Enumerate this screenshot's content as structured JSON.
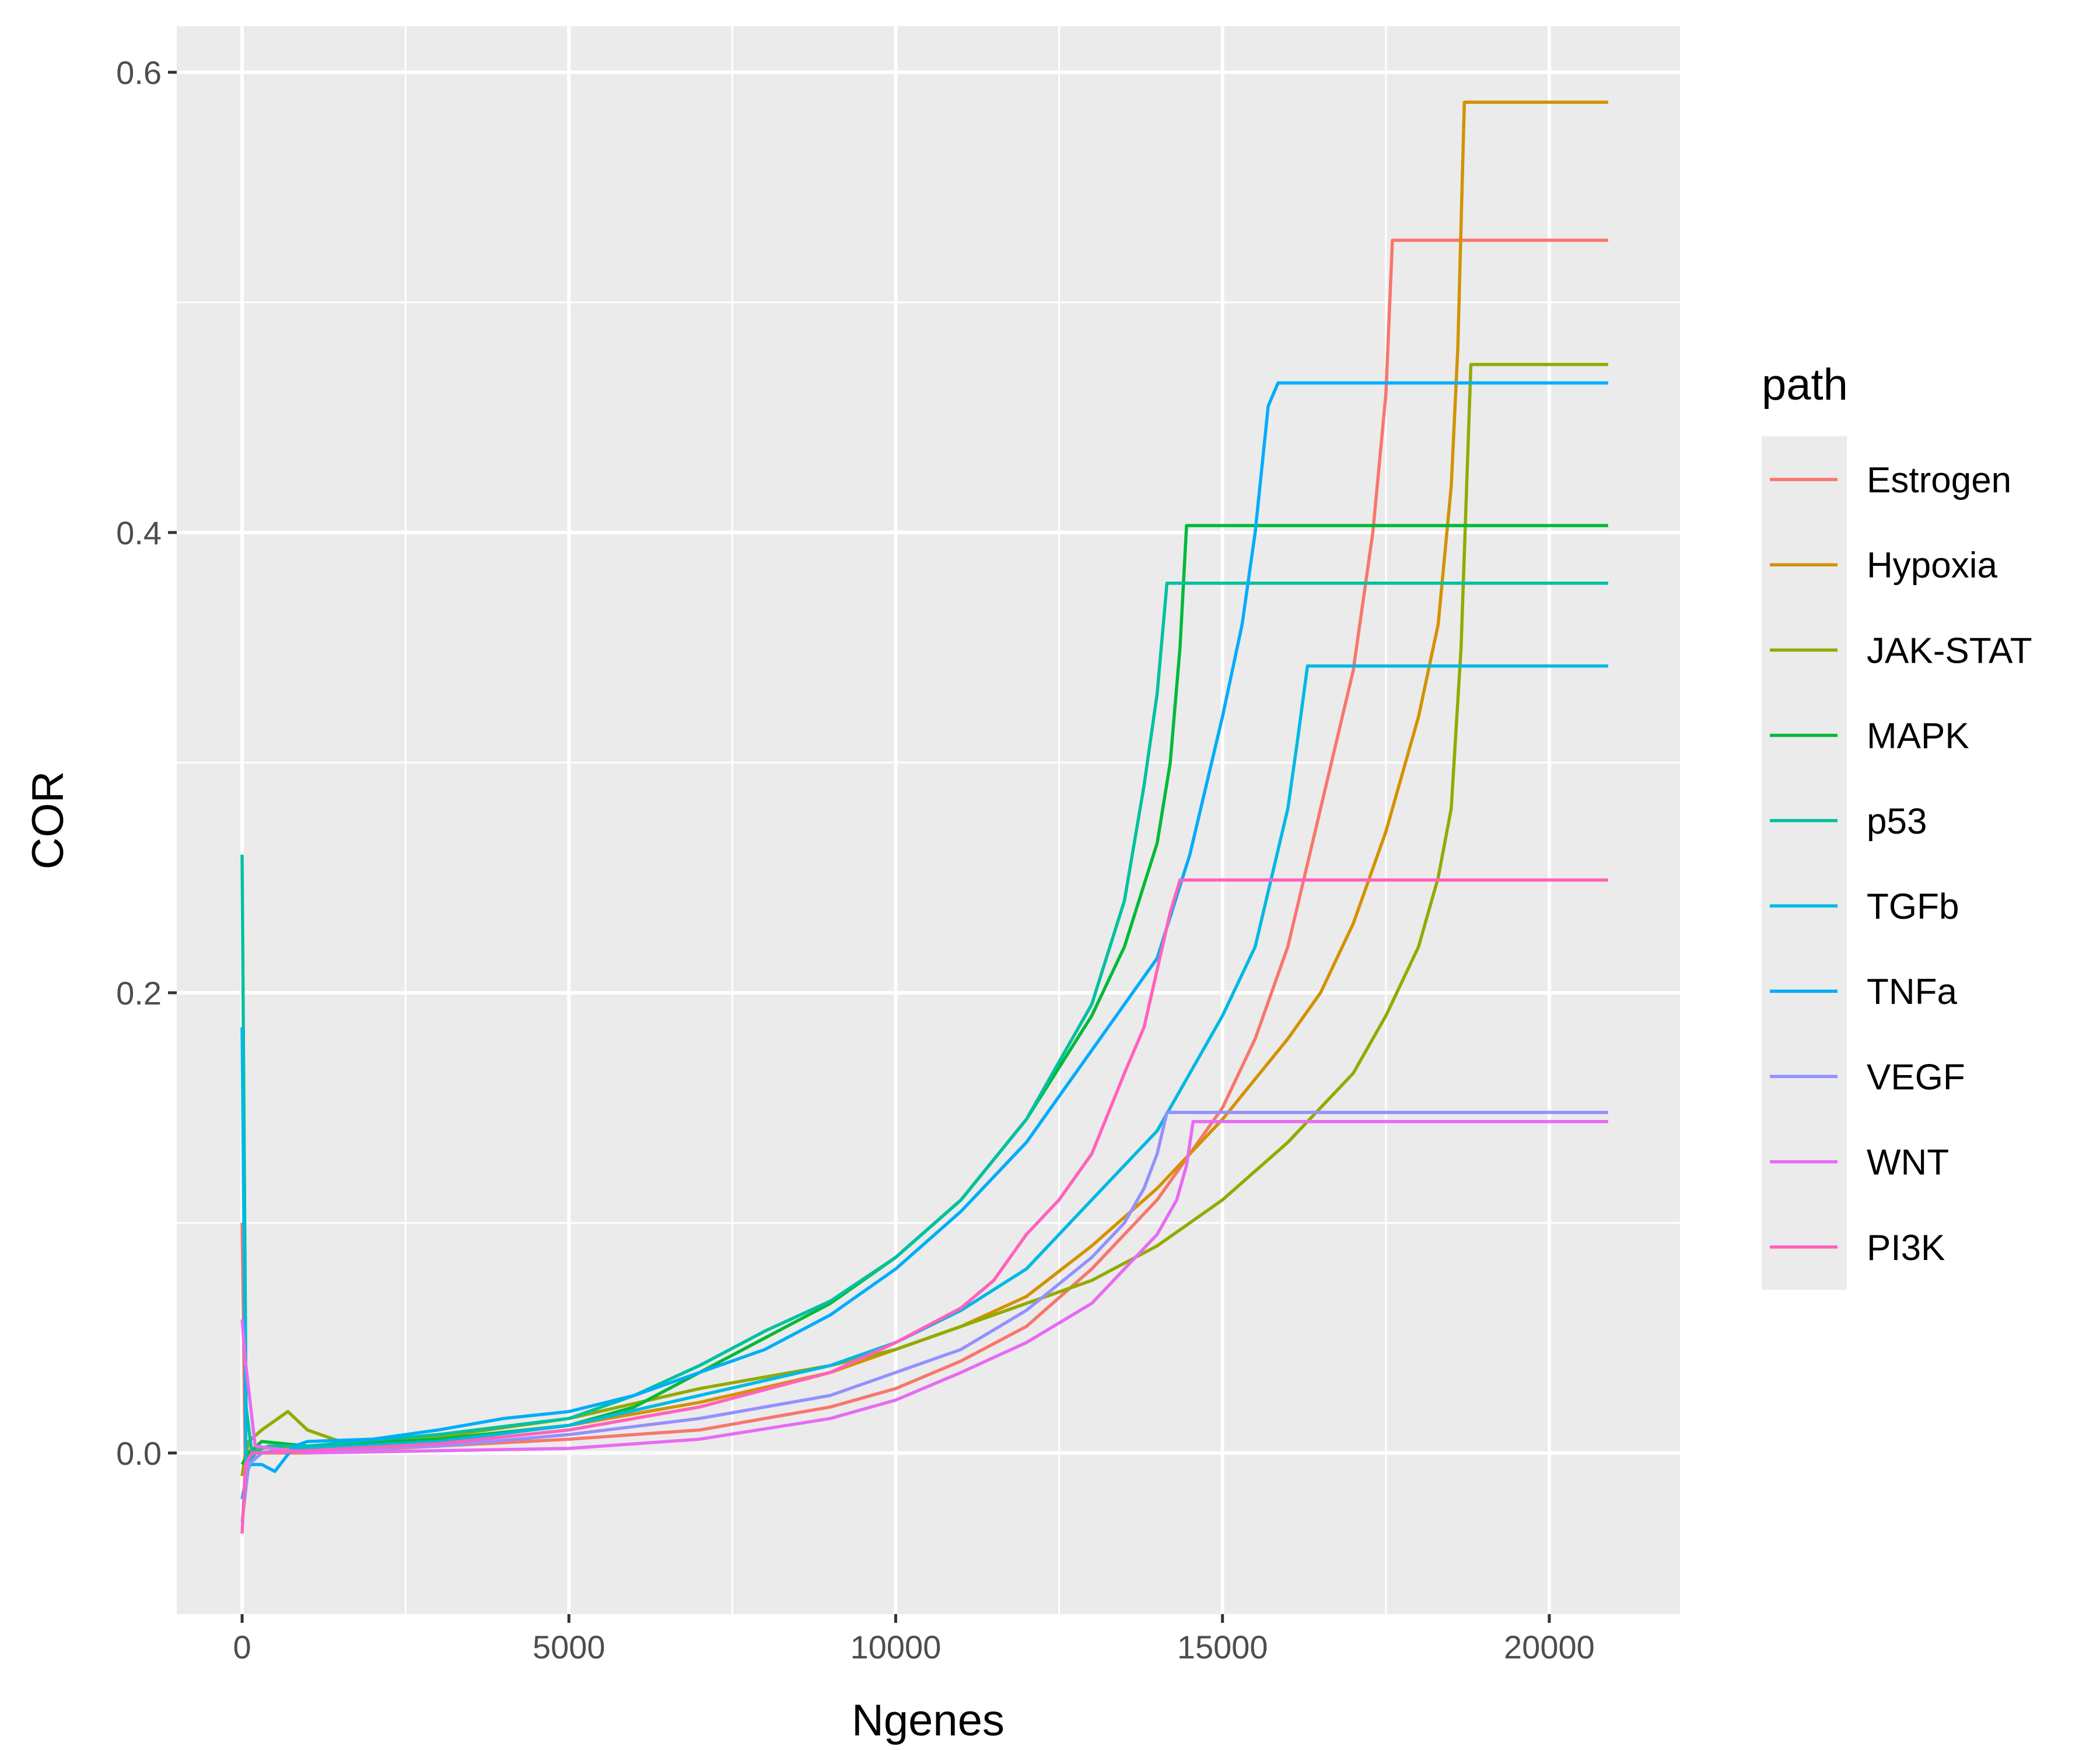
{
  "chart_data": {
    "type": "line",
    "xlabel": "Ngenes",
    "ylabel": "COR",
    "xlim": [
      -1000,
      22000
    ],
    "ylim": [
      -0.07,
      0.62
    ],
    "x_ticks": [
      0,
      5000,
      10000,
      15000,
      20000
    ],
    "x_tick_labels": [
      "0",
      "5000",
      "10000",
      "15000",
      "20000"
    ],
    "y_ticks": [
      0.0,
      0.2,
      0.4,
      0.6
    ],
    "y_tick_labels": [
      "0.0",
      "0.2",
      "0.4",
      "0.6"
    ],
    "grid": true,
    "legend": {
      "title": "path",
      "placement": "right"
    },
    "series": [
      {
        "name": "Estrogen",
        "color": "#F8766D",
        "x": [
          0,
          50,
          200,
          1000,
          3000,
          5000,
          7000,
          9000,
          10000,
          11000,
          12000,
          13000,
          14000,
          15000,
          15500,
          16000,
          16500,
          17000,
          17300,
          17500,
          17600,
          20900
        ],
        "y": [
          0.1,
          -0.01,
          0.0,
          0.0,
          0.003,
          0.006,
          0.01,
          0.02,
          0.028,
          0.04,
          0.055,
          0.08,
          0.11,
          0.15,
          0.18,
          0.22,
          0.28,
          0.34,
          0.4,
          0.46,
          0.527,
          0.527
        ]
      },
      {
        "name": "Hypoxia",
        "color": "#D39200",
        "x": [
          0,
          50,
          200,
          1000,
          3000,
          5000,
          7000,
          9000,
          10000,
          11000,
          12000,
          13000,
          14000,
          15000,
          16000,
          16500,
          17000,
          17500,
          18000,
          18300,
          18500,
          18600,
          18700,
          20900
        ],
        "y": [
          -0.01,
          0.0,
          0.002,
          0.003,
          0.005,
          0.012,
          0.022,
          0.035,
          0.045,
          0.055,
          0.068,
          0.09,
          0.115,
          0.145,
          0.18,
          0.2,
          0.23,
          0.27,
          0.32,
          0.36,
          0.42,
          0.48,
          0.587,
          0.587
        ]
      },
      {
        "name": "JAK-STAT",
        "color": "#93AA00",
        "x": [
          0,
          100,
          300,
          700,
          1000,
          1500,
          3000,
          5000,
          7000,
          9000,
          10000,
          11000,
          12000,
          13000,
          14000,
          14500,
          15000,
          16000,
          17000,
          17500,
          18000,
          18300,
          18500,
          18650,
          18800,
          20900
        ],
        "y": [
          -0.01,
          0.005,
          0.01,
          0.018,
          0.01,
          0.005,
          0.007,
          0.015,
          0.028,
          0.038,
          0.045,
          0.055,
          0.065,
          0.075,
          0.09,
          0.1,
          0.11,
          0.135,
          0.165,
          0.19,
          0.22,
          0.25,
          0.28,
          0.35,
          0.473,
          0.473
        ]
      },
      {
        "name": "MAPK",
        "color": "#00BA38",
        "x": [
          0,
          100,
          300,
          1000,
          3000,
          5000,
          6000,
          7000,
          8000,
          9000,
          10000,
          11000,
          12000,
          13000,
          13500,
          14000,
          14200,
          14350,
          14450,
          20900
        ],
        "y": [
          -0.005,
          0.0,
          0.005,
          0.003,
          0.006,
          0.012,
          0.02,
          0.035,
          0.05,
          0.065,
          0.085,
          0.11,
          0.145,
          0.19,
          0.22,
          0.265,
          0.3,
          0.35,
          0.403,
          0.403
        ]
      },
      {
        "name": "p53",
        "color": "#00C19F",
        "x": [
          0,
          60,
          150,
          400,
          1000,
          3000,
          5000,
          6000,
          7000,
          8000,
          9000,
          10000,
          11000,
          12000,
          13000,
          13500,
          13800,
          14000,
          14150,
          20900
        ],
        "y": [
          0.26,
          0.02,
          0.0,
          0.003,
          0.003,
          0.008,
          0.015,
          0.025,
          0.038,
          0.053,
          0.066,
          0.085,
          0.11,
          0.145,
          0.195,
          0.24,
          0.29,
          0.33,
          0.378,
          0.378
        ]
      },
      {
        "name": "TGFb",
        "color": "#00B9E3",
        "x": [
          0,
          60,
          200,
          1000,
          3000,
          5000,
          7000,
          9000,
          10000,
          11000,
          12000,
          13000,
          14000,
          15000,
          15500,
          16000,
          16150,
          16300,
          20900
        ],
        "y": [
          0.185,
          -0.005,
          0.0,
          0.002,
          0.005,
          0.012,
          0.025,
          0.038,
          0.048,
          0.062,
          0.08,
          0.11,
          0.14,
          0.19,
          0.22,
          0.28,
          0.31,
          0.342,
          0.342
        ]
      },
      {
        "name": "TNFa",
        "color": "#00ADFA",
        "x": [
          0,
          100,
          300,
          500,
          800,
          1000,
          2000,
          3000,
          4000,
          5000,
          6000,
          7000,
          8000,
          9000,
          10000,
          11000,
          12000,
          13000,
          14000,
          14500,
          15000,
          15300,
          15500,
          15700,
          15850,
          20900
        ],
        "y": [
          -0.02,
          -0.005,
          -0.005,
          -0.008,
          0.003,
          0.005,
          0.006,
          0.01,
          0.015,
          0.018,
          0.025,
          0.035,
          0.045,
          0.06,
          0.08,
          0.105,
          0.135,
          0.175,
          0.215,
          0.26,
          0.32,
          0.36,
          0.4,
          0.455,
          0.465,
          0.465
        ]
      },
      {
        "name": "VEGF",
        "color": "#9590FF",
        "x": [
          0,
          100,
          300,
          1000,
          3000,
          5000,
          7000,
          9000,
          10000,
          11000,
          12000,
          13000,
          13500,
          13800,
          14000,
          14150,
          20900
        ],
        "y": [
          -0.03,
          -0.005,
          0.0,
          0.001,
          0.003,
          0.008,
          0.015,
          0.025,
          0.035,
          0.045,
          0.062,
          0.085,
          0.1,
          0.115,
          0.13,
          0.148,
          0.148
        ]
      },
      {
        "name": "WNT",
        "color": "#E76BF3",
        "x": [
          0,
          50,
          200,
          1000,
          3000,
          5000,
          7000,
          9000,
          10000,
          11000,
          12000,
          13000,
          13500,
          14000,
          14300,
          14450,
          14550,
          20900
        ],
        "y": [
          0.058,
          0.04,
          0.003,
          0.0,
          0.001,
          0.002,
          0.006,
          0.015,
          0.023,
          0.035,
          0.048,
          0.065,
          0.08,
          0.095,
          0.11,
          0.125,
          0.144,
          0.144
        ]
      },
      {
        "name": "PI3K",
        "color": "#FF62BC",
        "x": [
          0,
          50,
          150,
          1000,
          3000,
          5000,
          7000,
          9000,
          10000,
          11000,
          11500,
          12000,
          12500,
          13000,
          13500,
          13800,
          14000,
          14200,
          14350,
          14450,
          20900
        ],
        "y": [
          -0.035,
          -0.005,
          0.0,
          0.001,
          0.004,
          0.01,
          0.02,
          0.035,
          0.048,
          0.063,
          0.075,
          0.095,
          0.11,
          0.13,
          0.165,
          0.185,
          0.21,
          0.235,
          0.249,
          0.249,
          0.249
        ]
      }
    ]
  }
}
